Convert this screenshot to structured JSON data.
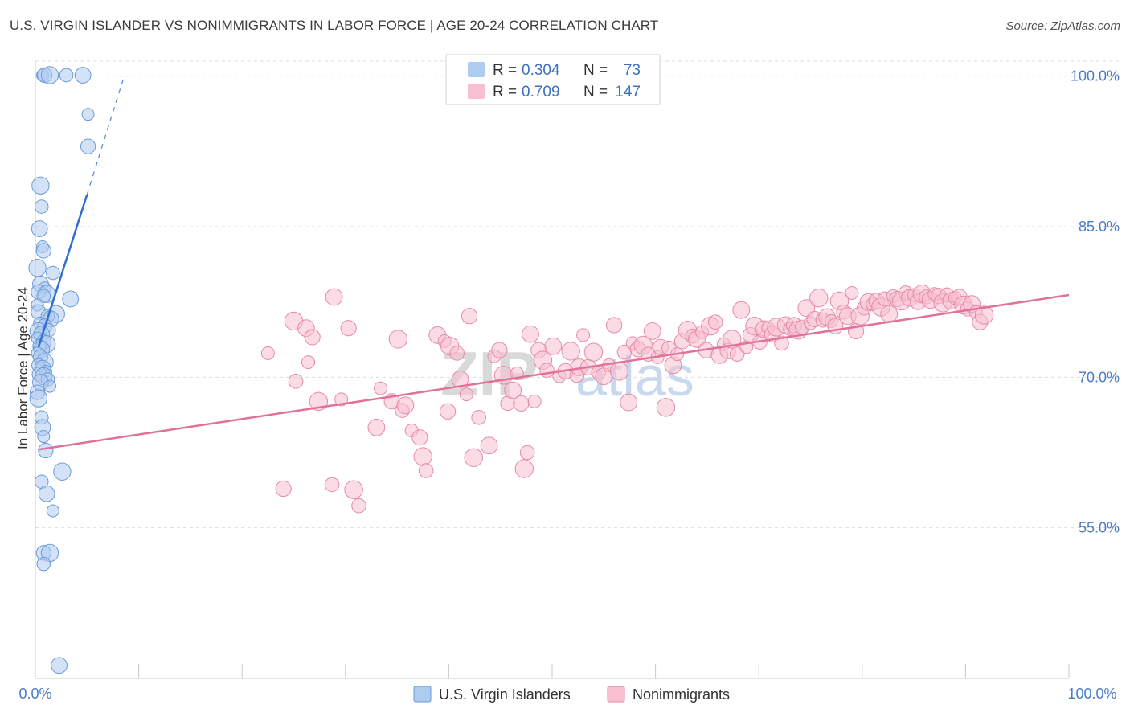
{
  "title": "U.S. VIRGIN ISLANDER VS NONIMMIGRANTS IN LABOR FORCE | AGE 20-24 CORRELATION CHART",
  "source": "Source: ZipAtlas.com",
  "watermark": {
    "part1": "ZIP",
    "part2": "atlas"
  },
  "legend": {
    "rows": [
      {
        "r_label": "R =",
        "r_value": "0.304",
        "n_label": "N =",
        "n_value": "73",
        "color": "#aecbf0",
        "stroke": "#6a9ad8"
      },
      {
        "r_label": "R =",
        "r_value": "0.709",
        "n_label": "N =",
        "n_value": "147",
        "color": "#f7bfd0",
        "stroke": "#e68aa8"
      }
    ]
  },
  "chart_data": {
    "type": "scatter",
    "title": "U.S. VIRGIN ISLANDER VS NONIMMIGRANTS IN LABOR FORCE | AGE 20-24 CORRELATION CHART",
    "xlabel": "",
    "ylabel": "In Labor Force | Age 20-24",
    "xlim": [
      0,
      100
    ],
    "ylim": [
      40,
      101.5
    ],
    "x_tick_labels": [
      "0.0%",
      "100.0%"
    ],
    "y_ticks": [
      55,
      70,
      85,
      100
    ],
    "y_tick_labels": [
      "55.0%",
      "70.0%",
      "85.0%",
      "100.0%"
    ],
    "grid": true,
    "legend_position": "top-center",
    "series": [
      {
        "name": "U.S. Virgin Islanders",
        "color": "#aecbf0",
        "stroke": "#6a9ad8",
        "trend": {
          "x0": 0.3,
          "y0": 73.0,
          "x1": 5.0,
          "y1": 88.2,
          "dashed_to": [
            8.5,
            99.7
          ]
        },
        "points": [
          [
            0.7,
            100.1
          ],
          [
            0.9,
            100.1
          ],
          [
            1.4,
            100.1
          ],
          [
            3.0,
            100.1
          ],
          [
            4.6,
            100.1
          ],
          [
            5.1,
            96.2
          ],
          [
            5.1,
            93.0
          ],
          [
            0.5,
            89.1
          ],
          [
            0.6,
            87.0
          ],
          [
            0.4,
            84.8
          ],
          [
            0.7,
            83.0
          ],
          [
            0.8,
            82.6
          ],
          [
            0.2,
            80.9
          ],
          [
            1.7,
            80.4
          ],
          [
            0.5,
            79.3
          ],
          [
            0.9,
            78.9
          ],
          [
            0.3,
            78.5
          ],
          [
            1.1,
            78.3
          ],
          [
            0.8,
            78.1
          ],
          [
            3.4,
            77.8
          ],
          [
            0.2,
            77.2
          ],
          [
            0.3,
            76.5
          ],
          [
            2.0,
            76.3
          ],
          [
            1.2,
            76.1
          ],
          [
            1.5,
            75.8
          ],
          [
            0.4,
            75.4
          ],
          [
            0.9,
            75.1
          ],
          [
            0.3,
            74.6
          ],
          [
            1.3,
            74.7
          ],
          [
            0.6,
            74.3
          ],
          [
            0.2,
            73.9
          ],
          [
            0.8,
            73.5
          ],
          [
            1.1,
            73.3
          ],
          [
            0.4,
            73.1
          ],
          [
            0.6,
            72.8
          ],
          [
            0.2,
            72.4
          ],
          [
            0.5,
            72.0
          ],
          [
            0.9,
            71.5
          ],
          [
            0.3,
            71.2
          ],
          [
            0.7,
            70.9
          ],
          [
            1.0,
            70.6
          ],
          [
            0.4,
            70.3
          ],
          [
            0.8,
            70.1
          ],
          [
            1.2,
            69.8
          ],
          [
            0.5,
            69.5
          ],
          [
            1.4,
            69.1
          ],
          [
            0.2,
            68.5
          ],
          [
            0.3,
            67.9
          ],
          [
            0.6,
            66.0
          ],
          [
            0.7,
            65.0
          ],
          [
            0.8,
            64.1
          ],
          [
            1.0,
            62.7
          ],
          [
            2.6,
            60.6
          ],
          [
            0.6,
            59.6
          ],
          [
            1.1,
            58.4
          ],
          [
            1.7,
            56.7
          ],
          [
            0.8,
            52.5
          ],
          [
            1.4,
            52.5
          ],
          [
            0.8,
            51.4
          ],
          [
            2.3,
            41.3
          ]
        ]
      },
      {
        "name": "Nonimmigrants",
        "color": "#f7bfd0",
        "stroke": "#e68aa8",
        "trend": {
          "x0": 0.3,
          "y0": 62.8,
          "x1": 100.0,
          "y1": 78.2
        },
        "points": [
          [
            22.5,
            72.4
          ],
          [
            24.0,
            58.9
          ],
          [
            25.0,
            75.6
          ],
          [
            25.2,
            69.6
          ],
          [
            26.2,
            74.9
          ],
          [
            26.4,
            71.5
          ],
          [
            26.8,
            74.0
          ],
          [
            27.4,
            67.6
          ],
          [
            28.7,
            59.3
          ],
          [
            28.9,
            78.0
          ],
          [
            29.6,
            67.8
          ],
          [
            30.3,
            74.9
          ],
          [
            30.8,
            58.8
          ],
          [
            31.3,
            57.2
          ],
          [
            33.0,
            65.0
          ],
          [
            33.4,
            68.9
          ],
          [
            34.5,
            67.6
          ],
          [
            35.1,
            73.8
          ],
          [
            35.5,
            66.7
          ],
          [
            35.8,
            67.2
          ],
          [
            36.4,
            64.7
          ],
          [
            37.2,
            64.0
          ],
          [
            37.5,
            62.1
          ],
          [
            37.8,
            60.7
          ],
          [
            38.9,
            74.2
          ],
          [
            39.6,
            73.6
          ],
          [
            39.9,
            66.6
          ],
          [
            40.1,
            73.1
          ],
          [
            40.8,
            72.4
          ],
          [
            41.1,
            69.8
          ],
          [
            41.7,
            68.3
          ],
          [
            42.0,
            76.1
          ],
          [
            42.4,
            62.0
          ],
          [
            42.9,
            66.0
          ],
          [
            43.9,
            63.2
          ],
          [
            44.4,
            72.1
          ],
          [
            44.9,
            72.7
          ],
          [
            45.3,
            70.2
          ],
          [
            45.7,
            67.4
          ],
          [
            46.2,
            68.7
          ],
          [
            46.6,
            70.4
          ],
          [
            47.0,
            67.4
          ],
          [
            47.3,
            60.9
          ],
          [
            47.6,
            62.5
          ],
          [
            47.9,
            74.3
          ],
          [
            48.3,
            67.6
          ],
          [
            48.7,
            72.7
          ],
          [
            49.1,
            71.7
          ],
          [
            49.5,
            70.7
          ],
          [
            50.1,
            73.1
          ],
          [
            50.7,
            70.1
          ],
          [
            51.3,
            70.6
          ],
          [
            51.8,
            72.6
          ],
          [
            52.4,
            70.2
          ],
          [
            52.6,
            71.0
          ],
          [
            53.0,
            74.2
          ],
          [
            53.5,
            71.0
          ],
          [
            54.0,
            72.5
          ],
          [
            54.5,
            70.5
          ],
          [
            55.0,
            70.1
          ],
          [
            55.5,
            71.2
          ],
          [
            56.0,
            75.2
          ],
          [
            56.5,
            70.6
          ],
          [
            57.0,
            72.5
          ],
          [
            57.4,
            67.5
          ],
          [
            57.8,
            73.4
          ],
          [
            58.3,
            72.8
          ],
          [
            58.8,
            73.2
          ],
          [
            59.3,
            72.3
          ],
          [
            59.7,
            74.6
          ],
          [
            60.2,
            72.0
          ],
          [
            60.5,
            73.0
          ],
          [
            61.0,
            67.0
          ],
          [
            61.3,
            72.9
          ],
          [
            61.7,
            71.2
          ],
          [
            62.1,
            72.3
          ],
          [
            62.6,
            73.6
          ],
          [
            63.1,
            74.7
          ],
          [
            63.6,
            74.1
          ],
          [
            64.0,
            73.8
          ],
          [
            64.5,
            74.5
          ],
          [
            64.9,
            72.7
          ],
          [
            65.3,
            75.1
          ],
          [
            65.8,
            75.5
          ],
          [
            66.2,
            72.2
          ],
          [
            66.6,
            73.3
          ],
          [
            67.0,
            72.6
          ],
          [
            67.4,
            73.8
          ],
          [
            67.9,
            72.3
          ],
          [
            68.3,
            76.7
          ],
          [
            68.8,
            73.0
          ],
          [
            69.2,
            74.2
          ],
          [
            69.6,
            75.1
          ],
          [
            70.1,
            73.5
          ],
          [
            70.5,
            74.8
          ],
          [
            70.9,
            74.9
          ],
          [
            71.3,
            74.3
          ],
          [
            71.7,
            75.0
          ],
          [
            72.2,
            73.4
          ],
          [
            72.6,
            75.2
          ],
          [
            73.0,
            74.8
          ],
          [
            73.4,
            75.2
          ],
          [
            73.8,
            74.7
          ],
          [
            74.2,
            75.0
          ],
          [
            74.6,
            76.9
          ],
          [
            75.0,
            75.4
          ],
          [
            75.4,
            75.8
          ],
          [
            75.8,
            77.9
          ],
          [
            76.2,
            75.7
          ],
          [
            76.6,
            76.0
          ],
          [
            77.0,
            75.6
          ],
          [
            77.4,
            75.1
          ],
          [
            77.8,
            77.6
          ],
          [
            78.2,
            76.5
          ],
          [
            78.6,
            76.1
          ],
          [
            79.0,
            78.4
          ],
          [
            79.4,
            74.6
          ],
          [
            79.8,
            76.1
          ],
          [
            80.2,
            76.9
          ],
          [
            80.6,
            77.5
          ],
          [
            81.0,
            77.3
          ],
          [
            81.4,
            77.6
          ],
          [
            81.8,
            77.0
          ],
          [
            82.2,
            77.8
          ],
          [
            82.6,
            76.3
          ],
          [
            83.0,
            78.1
          ],
          [
            83.4,
            77.8
          ],
          [
            83.8,
            77.6
          ],
          [
            84.2,
            78.4
          ],
          [
            84.6,
            77.9
          ],
          [
            85.0,
            78.2
          ],
          [
            85.4,
            77.5
          ],
          [
            85.8,
            78.3
          ],
          [
            86.2,
            78.0
          ],
          [
            86.6,
            77.7
          ],
          [
            87.0,
            78.3
          ],
          [
            87.4,
            78.1
          ],
          [
            87.8,
            77.4
          ],
          [
            88.2,
            78.2
          ],
          [
            88.6,
            77.6
          ],
          [
            89.0,
            77.9
          ],
          [
            89.4,
            78.0
          ],
          [
            89.8,
            77.2
          ],
          [
            90.2,
            76.8
          ],
          [
            90.6,
            77.3
          ],
          [
            91.0,
            76.5
          ],
          [
            91.4,
            75.5
          ],
          [
            91.8,
            76.2
          ]
        ]
      }
    ]
  },
  "bottom_legend": [
    {
      "label": "U.S. Virgin Islanders"
    },
    {
      "label": "Nonimmigrants"
    }
  ]
}
